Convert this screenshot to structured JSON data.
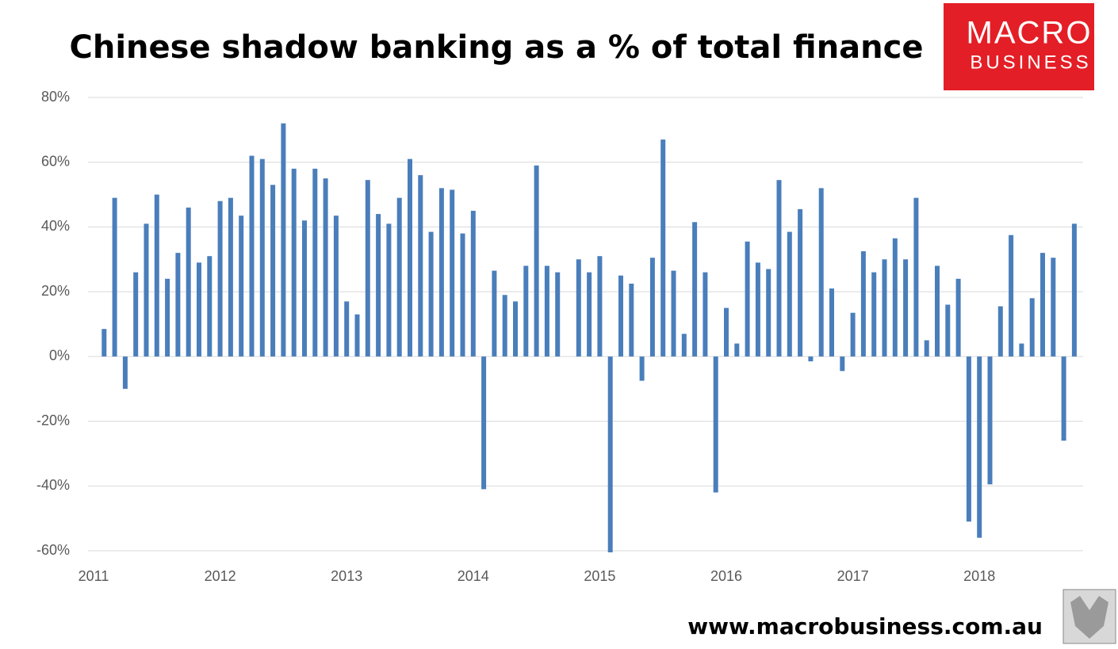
{
  "title": "Chinese shadow banking as a % of total finance",
  "logo": {
    "line1": "MACRO",
    "line2": "BUSINESS"
  },
  "footer": "www.macrobusiness.com.au",
  "chart_data": {
    "type": "bar",
    "categories": [
      "2011",
      null,
      null,
      null,
      null,
      null,
      null,
      null,
      null,
      null,
      null,
      null,
      "2012",
      null,
      null,
      null,
      null,
      null,
      null,
      null,
      null,
      null,
      null,
      null,
      "2013",
      null,
      null,
      null,
      null,
      null,
      null,
      null,
      null,
      null,
      null,
      null,
      "2014",
      null,
      null,
      null,
      null,
      null,
      null,
      null,
      null,
      null,
      null,
      null,
      "2015",
      null,
      null,
      null,
      null,
      null,
      null,
      null,
      null,
      null,
      null,
      null,
      "2016",
      null,
      null,
      null,
      null,
      null,
      null,
      null,
      null,
      null,
      null,
      null,
      "2017",
      null,
      null,
      null,
      null,
      null,
      null,
      null,
      null,
      null,
      null,
      null,
      "2018",
      null,
      null,
      null,
      null,
      null,
      null,
      null,
      null,
      null
    ],
    "values": [
      null,
      8.5,
      49,
      -10,
      26,
      41,
      50,
      24,
      32,
      46,
      29,
      31,
      48,
      49,
      43.5,
      62,
      61,
      53,
      72,
      58,
      42,
      58,
      55,
      43.5,
      17,
      13,
      54.5,
      44,
      41,
      49,
      61,
      56,
      38.5,
      52,
      51.5,
      38,
      45,
      -41,
      26.5,
      19,
      17,
      28,
      59,
      28,
      26,
      null,
      30,
      26,
      31,
      -60.5,
      25,
      22.5,
      -7.5,
      30.5,
      67,
      26.5,
      7,
      41.5,
      26,
      -42,
      15,
      4,
      35.5,
      29,
      27,
      54.5,
      38.5,
      45.5,
      -1.5,
      52,
      21,
      -4.5,
      13.5,
      32.5,
      26,
      30,
      36.5,
      30,
      49,
      5,
      28,
      16,
      24,
      -51,
      -56,
      -39.5,
      15.5,
      37.5,
      4,
      18,
      32,
      30.5,
      -26,
      41
    ],
    "color": "#4a7ebb",
    "ylim": [
      -60,
      80
    ],
    "yticks": [
      {
        "value": -60,
        "label": "-60%"
      },
      {
        "value": -40,
        "label": "-40%"
      },
      {
        "value": -20,
        "label": "-20%"
      },
      {
        "value": 0,
        "label": "0%"
      },
      {
        "value": 20,
        "label": "20%"
      },
      {
        "value": 40,
        "label": "40%"
      },
      {
        "value": 60,
        "label": "60%"
      },
      {
        "value": 80,
        "label": "80%"
      }
    ],
    "grid": true
  }
}
